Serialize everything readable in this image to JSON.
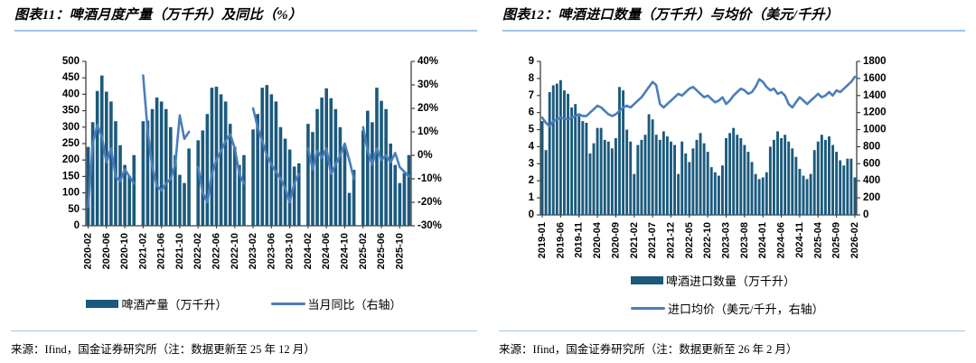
{
  "colors": {
    "bar": "#1b5a7d",
    "line": "#4a7ebb",
    "rule": "#9dc3e6",
    "axis": "#404040",
    "text": "#000000"
  },
  "figures": [
    {
      "title": "图表11：啤酒月度产量（万千升）及同比（%）",
      "source": "来源：Ifind，国金证券研究所（注：数据更新至 25 年 12 月）",
      "legend": [
        {
          "type": "bar",
          "label": "啤酒产量（万千升）"
        },
        {
          "type": "line",
          "label": "当月同比（右轴）"
        }
      ]
    },
    {
      "title": "图表12：啤酒进口数量（万千升）与均价（美元/千升）",
      "source": "来源：Ifind，国金证券研究所（注：数据更新至 26 年 2 月）",
      "legend": [
        {
          "type": "bar",
          "label": "啤酒进口数量（万千升）"
        },
        {
          "type": "line",
          "label": "进口均价（美元/千升，右轴）"
        }
      ]
    }
  ],
  "chart_data": [
    {
      "type": "bar+line",
      "title": "啤酒月度产量（万千升）及同比（%）",
      "x": [
        "2020-02",
        "2020-03",
        "2020-04",
        "2020-05",
        "2020-06",
        "2020-07",
        "2020-08",
        "2020-09",
        "2020-10",
        "2020-11",
        "2020-12",
        "2021-01",
        "2021-02",
        "2021-03",
        "2021-04",
        "2021-05",
        "2021-06",
        "2021-07",
        "2021-08",
        "2021-09",
        "2021-10",
        "2021-11",
        "2021-12",
        "2022-01",
        "2022-02",
        "2022-03",
        "2022-04",
        "2022-05",
        "2022-06",
        "2022-07",
        "2022-08",
        "2022-09",
        "2022-10",
        "2022-11",
        "2022-12",
        "2023-01",
        "2023-02",
        "2023-03",
        "2023-04",
        "2023-05",
        "2023-06",
        "2023-07",
        "2023-08",
        "2023-09",
        "2023-10",
        "2023-11",
        "2023-12",
        "2024-01",
        "2024-02",
        "2024-03",
        "2024-04",
        "2024-05",
        "2024-06",
        "2024-07",
        "2024-08",
        "2024-09",
        "2024-10",
        "2024-11",
        "2024-12",
        "2025-01",
        "2025-02",
        "2025-03",
        "2025-04",
        "2025-05",
        "2025-06",
        "2025-07",
        "2025-08",
        "2025-09",
        "2025-10",
        "2025-11",
        "2025-12"
      ],
      "x_tick_labels": [
        "2020-02",
        "2020-06",
        "2020-10",
        "2021-02",
        "2021-06",
        "2021-10",
        "2022-02",
        "2022-06",
        "2022-10",
        "2023-02",
        "2023-06",
        "2023-10",
        "2024-02",
        "2024-06",
        "2024-10",
        "2025-02",
        "2025-06",
        "2025-10"
      ],
      "series": [
        {
          "name": "啤酒产量（万千升）",
          "type": "bar",
          "axis": "left",
          "values": [
            240,
            315,
            410,
            457,
            408,
            378,
            318,
            245,
            185,
            152,
            215,
            null,
            318,
            320,
            355,
            390,
            378,
            355,
            300,
            215,
            155,
            130,
            235,
            null,
            260,
            290,
            340,
            420,
            423,
            400,
            378,
            310,
            240,
            185,
            215,
            null,
            293,
            340,
            420,
            428,
            400,
            378,
            300,
            265,
            232,
            180,
            190,
            null,
            310,
            285,
            355,
            390,
            418,
            388,
            355,
            300,
            240,
            100,
            170,
            null,
            290,
            350,
            315,
            420,
            380,
            355,
            250,
            185,
            130,
            160,
            215
          ]
        },
        {
          "name": "当月同比（右轴）",
          "type": "line",
          "axis": "right",
          "values": [
            -22,
            5,
            13,
            8,
            -3,
            3,
            -9,
            -11,
            -6,
            -9,
            -12,
            null,
            34,
            10,
            -5,
            -13,
            -15,
            -12,
            -10,
            -4,
            17,
            7,
            10,
            null,
            -5,
            -16,
            -20,
            -8,
            -2,
            2,
            6,
            9,
            3,
            -8,
            -12,
            null,
            20,
            12,
            6,
            0,
            -4,
            -7,
            -10,
            -14,
            -20,
            -12,
            -8,
            null,
            3,
            -6,
            2,
            -1,
            3,
            -8,
            -4,
            0,
            5,
            -2,
            -10,
            null,
            12,
            2,
            -4,
            3,
            -2,
            0,
            -3,
            1,
            -5,
            -7,
            -9
          ]
        }
      ],
      "y_left": {
        "min": 0,
        "max": 500,
        "step": 50,
        "suffix": ""
      },
      "y_right": {
        "min": -30,
        "max": 40,
        "step": 10,
        "suffix": "%"
      },
      "grid": false,
      "legend_position": "bottom"
    },
    {
      "type": "bar+line",
      "title": "啤酒进口数量（万千升）与均价（美元/千升）",
      "x": [
        "2019-01",
        "2019-02",
        "2019-03",
        "2019-04",
        "2019-05",
        "2019-06",
        "2019-07",
        "2019-08",
        "2019-09",
        "2019-10",
        "2019-11",
        "2019-12",
        "2020-01",
        "2020-02",
        "2020-03",
        "2020-04",
        "2020-05",
        "2020-06",
        "2020-07",
        "2020-08",
        "2020-09",
        "2020-10",
        "2020-11",
        "2020-12",
        "2021-01",
        "2021-02",
        "2021-03",
        "2021-04",
        "2021-05",
        "2021-06",
        "2021-07",
        "2021-08",
        "2021-09",
        "2021-10",
        "2021-11",
        "2021-12",
        "2022-01",
        "2022-02",
        "2022-03",
        "2022-04",
        "2022-05",
        "2022-06",
        "2022-07",
        "2022-08",
        "2022-09",
        "2022-10",
        "2022-11",
        "2022-12",
        "2023-01",
        "2023-02",
        "2023-03",
        "2023-04",
        "2023-05",
        "2023-06",
        "2023-07",
        "2023-08",
        "2023-09",
        "2023-10",
        "2023-11",
        "2023-12",
        "2024-01",
        "2024-02",
        "2024-03",
        "2024-04",
        "2024-05",
        "2024-06",
        "2024-07",
        "2024-08",
        "2024-09",
        "2024-10",
        "2024-11",
        "2024-12",
        "2025-01",
        "2025-02",
        "2025-03",
        "2025-04",
        "2025-05",
        "2025-06",
        "2025-07",
        "2025-08",
        "2025-09",
        "2025-10",
        "2025-11",
        "2025-12",
        "2026-01",
        "2026-02"
      ],
      "x_tick_labels": [
        "2019-01",
        "2019-06",
        "2019-11",
        "2020-04",
        "2020-09",
        "2021-02",
        "2021-07",
        "2021-12",
        "2022-05",
        "2022-10",
        "2023-03",
        "2023-08",
        "2024-01",
        "2024-06",
        "2024-11",
        "2025-04",
        "2025-09",
        "2026-02"
      ],
      "series": [
        {
          "name": "啤酒进口数量（万千升）",
          "type": "bar",
          "axis": "left",
          "values": [
            5.5,
            3.8,
            7.2,
            7.6,
            7.7,
            7.9,
            7.3,
            7.1,
            6.3,
            6.5,
            5.8,
            5.5,
            5.4,
            3.6,
            4.2,
            5.1,
            5.1,
            4.4,
            4.3,
            3.9,
            4.5,
            7.5,
            7.3,
            5.0,
            4.3,
            2.4,
            4.1,
            4.4,
            4.7,
            5.9,
            5.6,
            4.7,
            4.4,
            4.9,
            4.6,
            4.3,
            4.1,
            2.4,
            4.3,
            3.6,
            3.1,
            3.9,
            4.4,
            4.8,
            4.2,
            3.7,
            2.8,
            2.5,
            2.3,
            2.9,
            4.5,
            4.8,
            5.1,
            4.7,
            4.5,
            4.1,
            3.7,
            3.1,
            2.4,
            2.1,
            2.2,
            2.5,
            4.0,
            4.4,
            4.9,
            4.5,
            4.7,
            4.3,
            3.9,
            3.4,
            2.7,
            2.3,
            2.1,
            2.4,
            3.8,
            4.3,
            4.7,
            4.4,
            4.6,
            4.1,
            3.7,
            3.2,
            2.9,
            3.3,
            3.3,
            2.2
          ]
        },
        {
          "name": "进口均价（美元/千升，右轴）",
          "type": "line",
          "axis": "right",
          "values": [
            1140,
            1080,
            1040,
            1100,
            1120,
            1140,
            1130,
            1120,
            1140,
            1160,
            1180,
            1160,
            1160,
            1200,
            1240,
            1280,
            1260,
            1220,
            1180,
            1160,
            1180,
            1220,
            1260,
            1280,
            1260,
            1300,
            1340,
            1380,
            1440,
            1500,
            1560,
            1520,
            1300,
            1260,
            1300,
            1340,
            1380,
            1420,
            1400,
            1440,
            1480,
            1500,
            1460,
            1420,
            1380,
            1400,
            1360,
            1320,
            1340,
            1380,
            1300,
            1340,
            1400,
            1440,
            1480,
            1460,
            1420,
            1440,
            1500,
            1590,
            1560,
            1500,
            1460,
            1480,
            1420,
            1440,
            1400,
            1300,
            1260,
            1320,
            1380,
            1340,
            1300,
            1340,
            1380,
            1420,
            1380,
            1400,
            1440,
            1400,
            1460,
            1440,
            1480,
            1520,
            1560,
            1620
          ]
        }
      ],
      "y_left": {
        "min": 0,
        "max": 9,
        "step": 1,
        "suffix": ""
      },
      "y_right": {
        "min": 0,
        "max": 1800,
        "step": 200,
        "suffix": ""
      },
      "grid": false,
      "legend_position": "bottom"
    }
  ]
}
